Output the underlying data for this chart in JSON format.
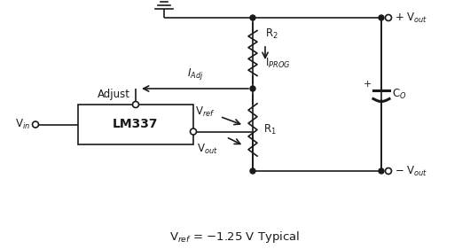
{
  "bg_color": "#ffffff",
  "line_color": "#1a1a1a",
  "title_text": "V$_{ref}$ = −1.25 V Typical",
  "title_fontsize": 9.5,
  "component_fontsize": 8.5,
  "figsize": [
    5.3,
    2.81
  ],
  "dpi": 100
}
